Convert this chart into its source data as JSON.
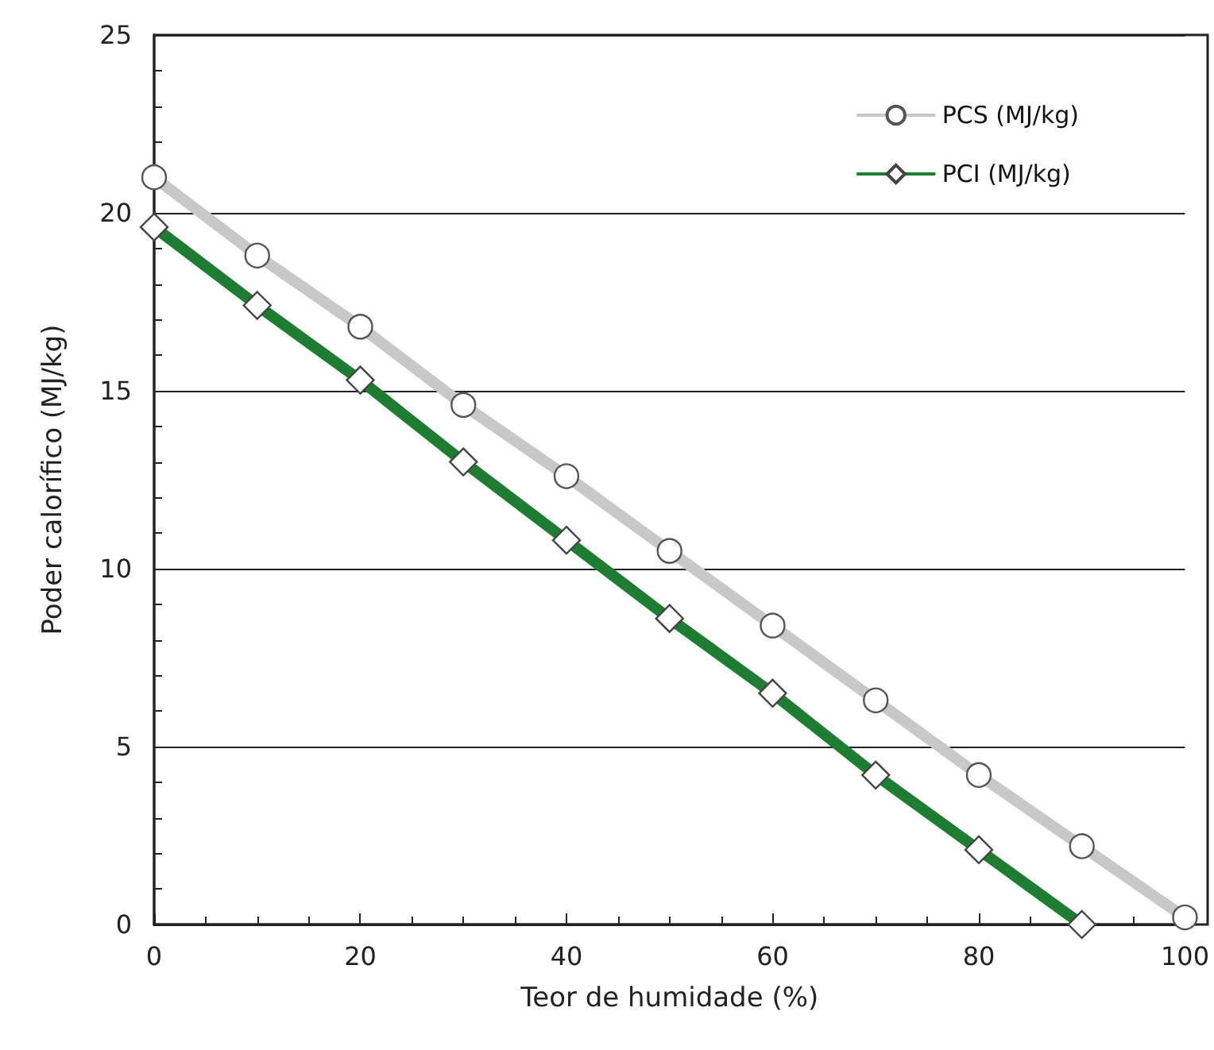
{
  "chart_data": {
    "type": "line",
    "xlabel": "Teor de humidade (%)",
    "ylabel": "Poder calorífico (MJ/kg)",
    "x": [
      0,
      10,
      20,
      30,
      40,
      50,
      60,
      70,
      80,
      90,
      100
    ],
    "series": [
      {
        "name": "PCS (MJ/kg)",
        "color": "#c8c8c8",
        "marker": "circle",
        "values": [
          21.0,
          18.8,
          16.8,
          14.6,
          12.6,
          10.5,
          8.4,
          6.3,
          4.2,
          2.2,
          0.2
        ]
      },
      {
        "name": "PCI (MJ/kg)",
        "color": "#1e7d32",
        "marker": "diamond",
        "values": [
          19.6,
          17.4,
          15.3,
          13.0,
          10.8,
          8.6,
          6.5,
          4.2,
          2.1,
          0.0,
          null
        ]
      }
    ],
    "xlim": [
      0,
      100
    ],
    "xticks": [
      0,
      20,
      40,
      60,
      80,
      100
    ],
    "ylim": [
      0,
      25
    ],
    "yticks": [
      0,
      5,
      10,
      15,
      20,
      25
    ],
    "grid": "y",
    "legend": "top right",
    "line_style": "solid"
  }
}
